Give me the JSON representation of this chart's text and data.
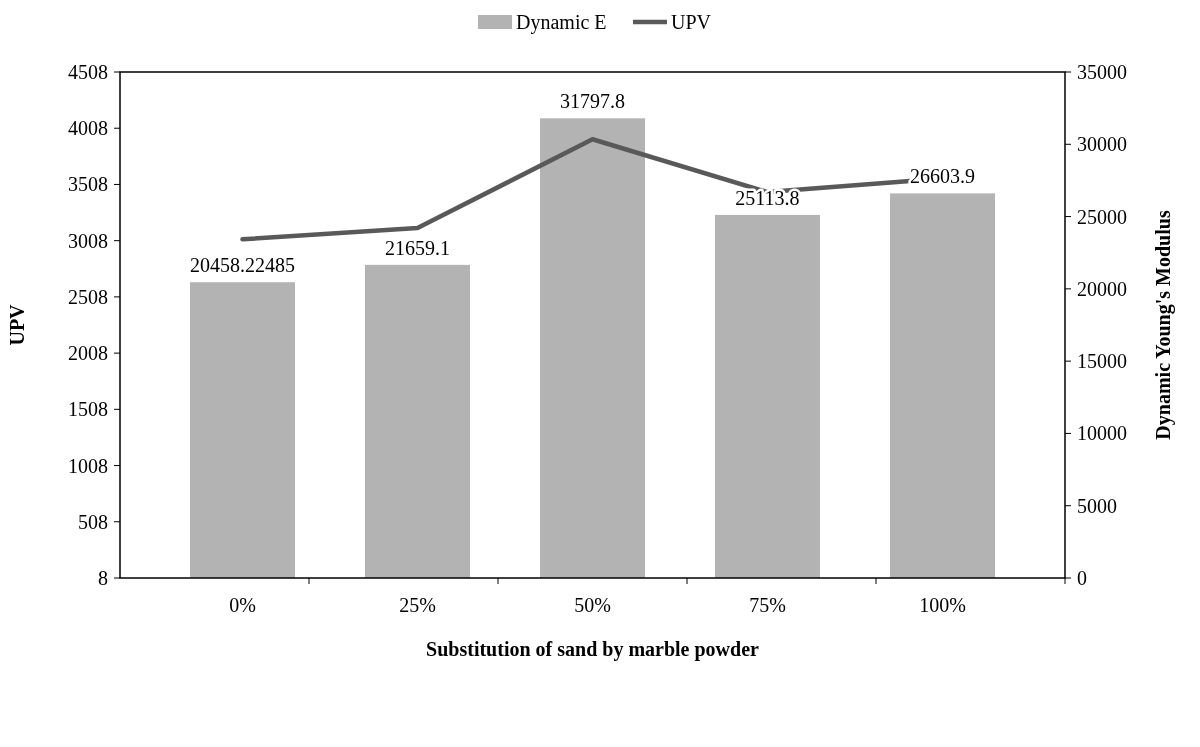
{
  "chart_data": {
    "type": "bar",
    "xlabel": "Substitution of sand by marble powder",
    "ylabel": "UPV",
    "y2label": "Dynamic Young's Modulus",
    "categories": [
      "0%",
      "25%",
      "50%",
      "75%",
      "100%"
    ],
    "series": [
      {
        "name": "Dynamic E",
        "axis": "y2",
        "color": "#b3b3b3",
        "values": [
          20458.22485,
          21659.1,
          31797.8,
          25113.8,
          26603.9
        ],
        "value_labels": [
          "20458.22485",
          "21659.1",
          "31797.8",
          "25113.8",
          "26603.9"
        ]
      },
      {
        "name": "UPV",
        "type": "line",
        "color": "#595959",
        "values": [
          3020,
          3120,
          3910,
          3440,
          3560
        ]
      }
    ],
    "ylim": [
      8,
      4508
    ],
    "yticks": [
      8,
      508,
      1008,
      1508,
      2008,
      2508,
      3008,
      3508,
      4008,
      4508
    ],
    "y2lim": [
      0,
      35000
    ],
    "y2ticks": [
      0,
      5000,
      10000,
      15000,
      20000,
      25000,
      30000,
      35000
    ],
    "grid": false,
    "legend": "top",
    "marker": "none"
  }
}
